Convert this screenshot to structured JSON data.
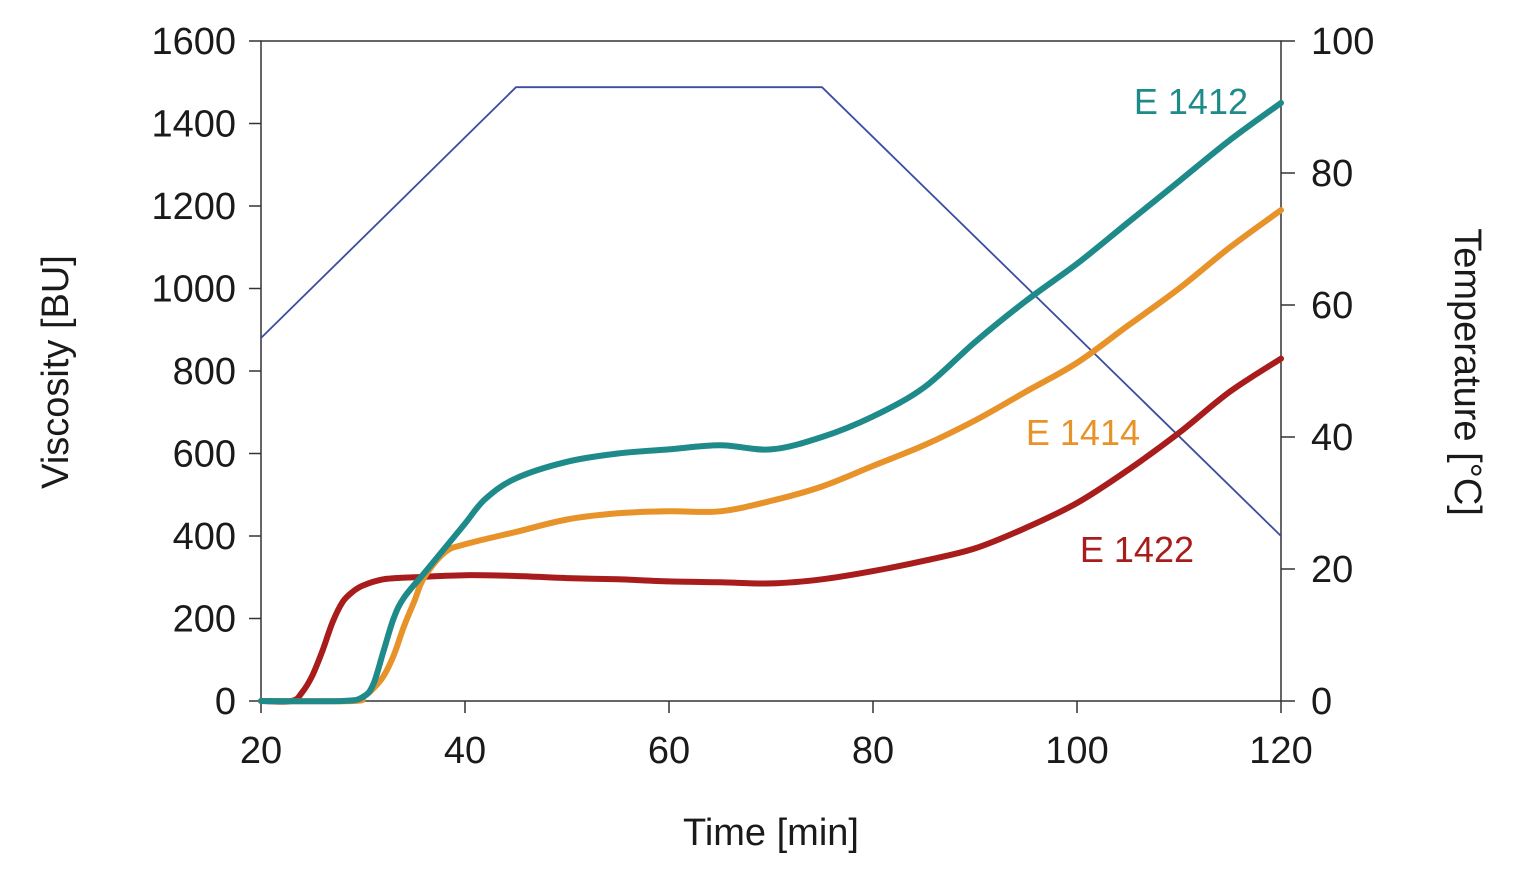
{
  "chart_data": {
    "type": "line",
    "title": "",
    "xlabel": "Time [min]",
    "ylabel": "Viscosity [BU]",
    "y2label": "Temperature [°C]",
    "xlim": [
      20,
      120
    ],
    "ylim": [
      0,
      1600
    ],
    "y2lim": [
      0,
      100
    ],
    "x_ticks": [
      20,
      40,
      60,
      80,
      100,
      120
    ],
    "y_ticks": [
      0,
      200,
      400,
      600,
      800,
      1000,
      1200,
      1400,
      1600
    ],
    "y2_ticks": [
      0,
      20,
      40,
      60,
      80,
      100
    ],
    "grid": false,
    "legend": "none",
    "series": [
      {
        "name": "E 1412",
        "axis": "left",
        "color": "#1f8a8a",
        "x": [
          20,
          28,
          30,
          31,
          32,
          33,
          34,
          36,
          38,
          40,
          42,
          45,
          50,
          55,
          60,
          65,
          70,
          75,
          80,
          85,
          90,
          95,
          100,
          105,
          110,
          115,
          120
        ],
        "y": [
          0,
          0,
          10,
          40,
          120,
          200,
          250,
          310,
          370,
          430,
          490,
          540,
          580,
          600,
          610,
          620,
          610,
          640,
          690,
          760,
          870,
          970,
          1060,
          1160,
          1260,
          1360,
          1450
        ]
      },
      {
        "name": "E 1414",
        "axis": "left",
        "color": "#e8922a",
        "x": [
          20,
          29,
          30,
          31,
          32,
          33,
          34,
          35,
          36,
          38,
          40,
          45,
          50,
          55,
          60,
          65,
          70,
          75,
          80,
          85,
          90,
          95,
          100,
          105,
          110,
          115,
          120
        ],
        "y": [
          0,
          0,
          10,
          30,
          60,
          110,
          180,
          240,
          300,
          360,
          380,
          410,
          440,
          455,
          460,
          460,
          485,
          520,
          570,
          620,
          680,
          750,
          820,
          910,
          1000,
          1100,
          1190
        ]
      },
      {
        "name": "E 1422",
        "axis": "left",
        "color": "#a81c1c",
        "x": [
          20,
          23,
          24,
          25,
          26,
          27,
          28,
          29,
          30,
          32,
          35,
          40,
          45,
          50,
          55,
          60,
          65,
          70,
          75,
          80,
          85,
          90,
          95,
          100,
          105,
          110,
          115,
          120
        ],
        "y": [
          0,
          0,
          20,
          60,
          120,
          190,
          240,
          265,
          280,
          295,
          300,
          305,
          303,
          298,
          295,
          290,
          288,
          285,
          295,
          315,
          340,
          370,
          420,
          480,
          560,
          650,
          750,
          830
        ]
      },
      {
        "name": "",
        "axis": "right",
        "color": "#3a4da0",
        "x": [
          20,
          45,
          75,
          120
        ],
        "y": [
          55,
          93,
          93,
          25
        ]
      }
    ],
    "annotations": [
      "E 1412",
      "E 1414",
      "E 1422"
    ]
  }
}
